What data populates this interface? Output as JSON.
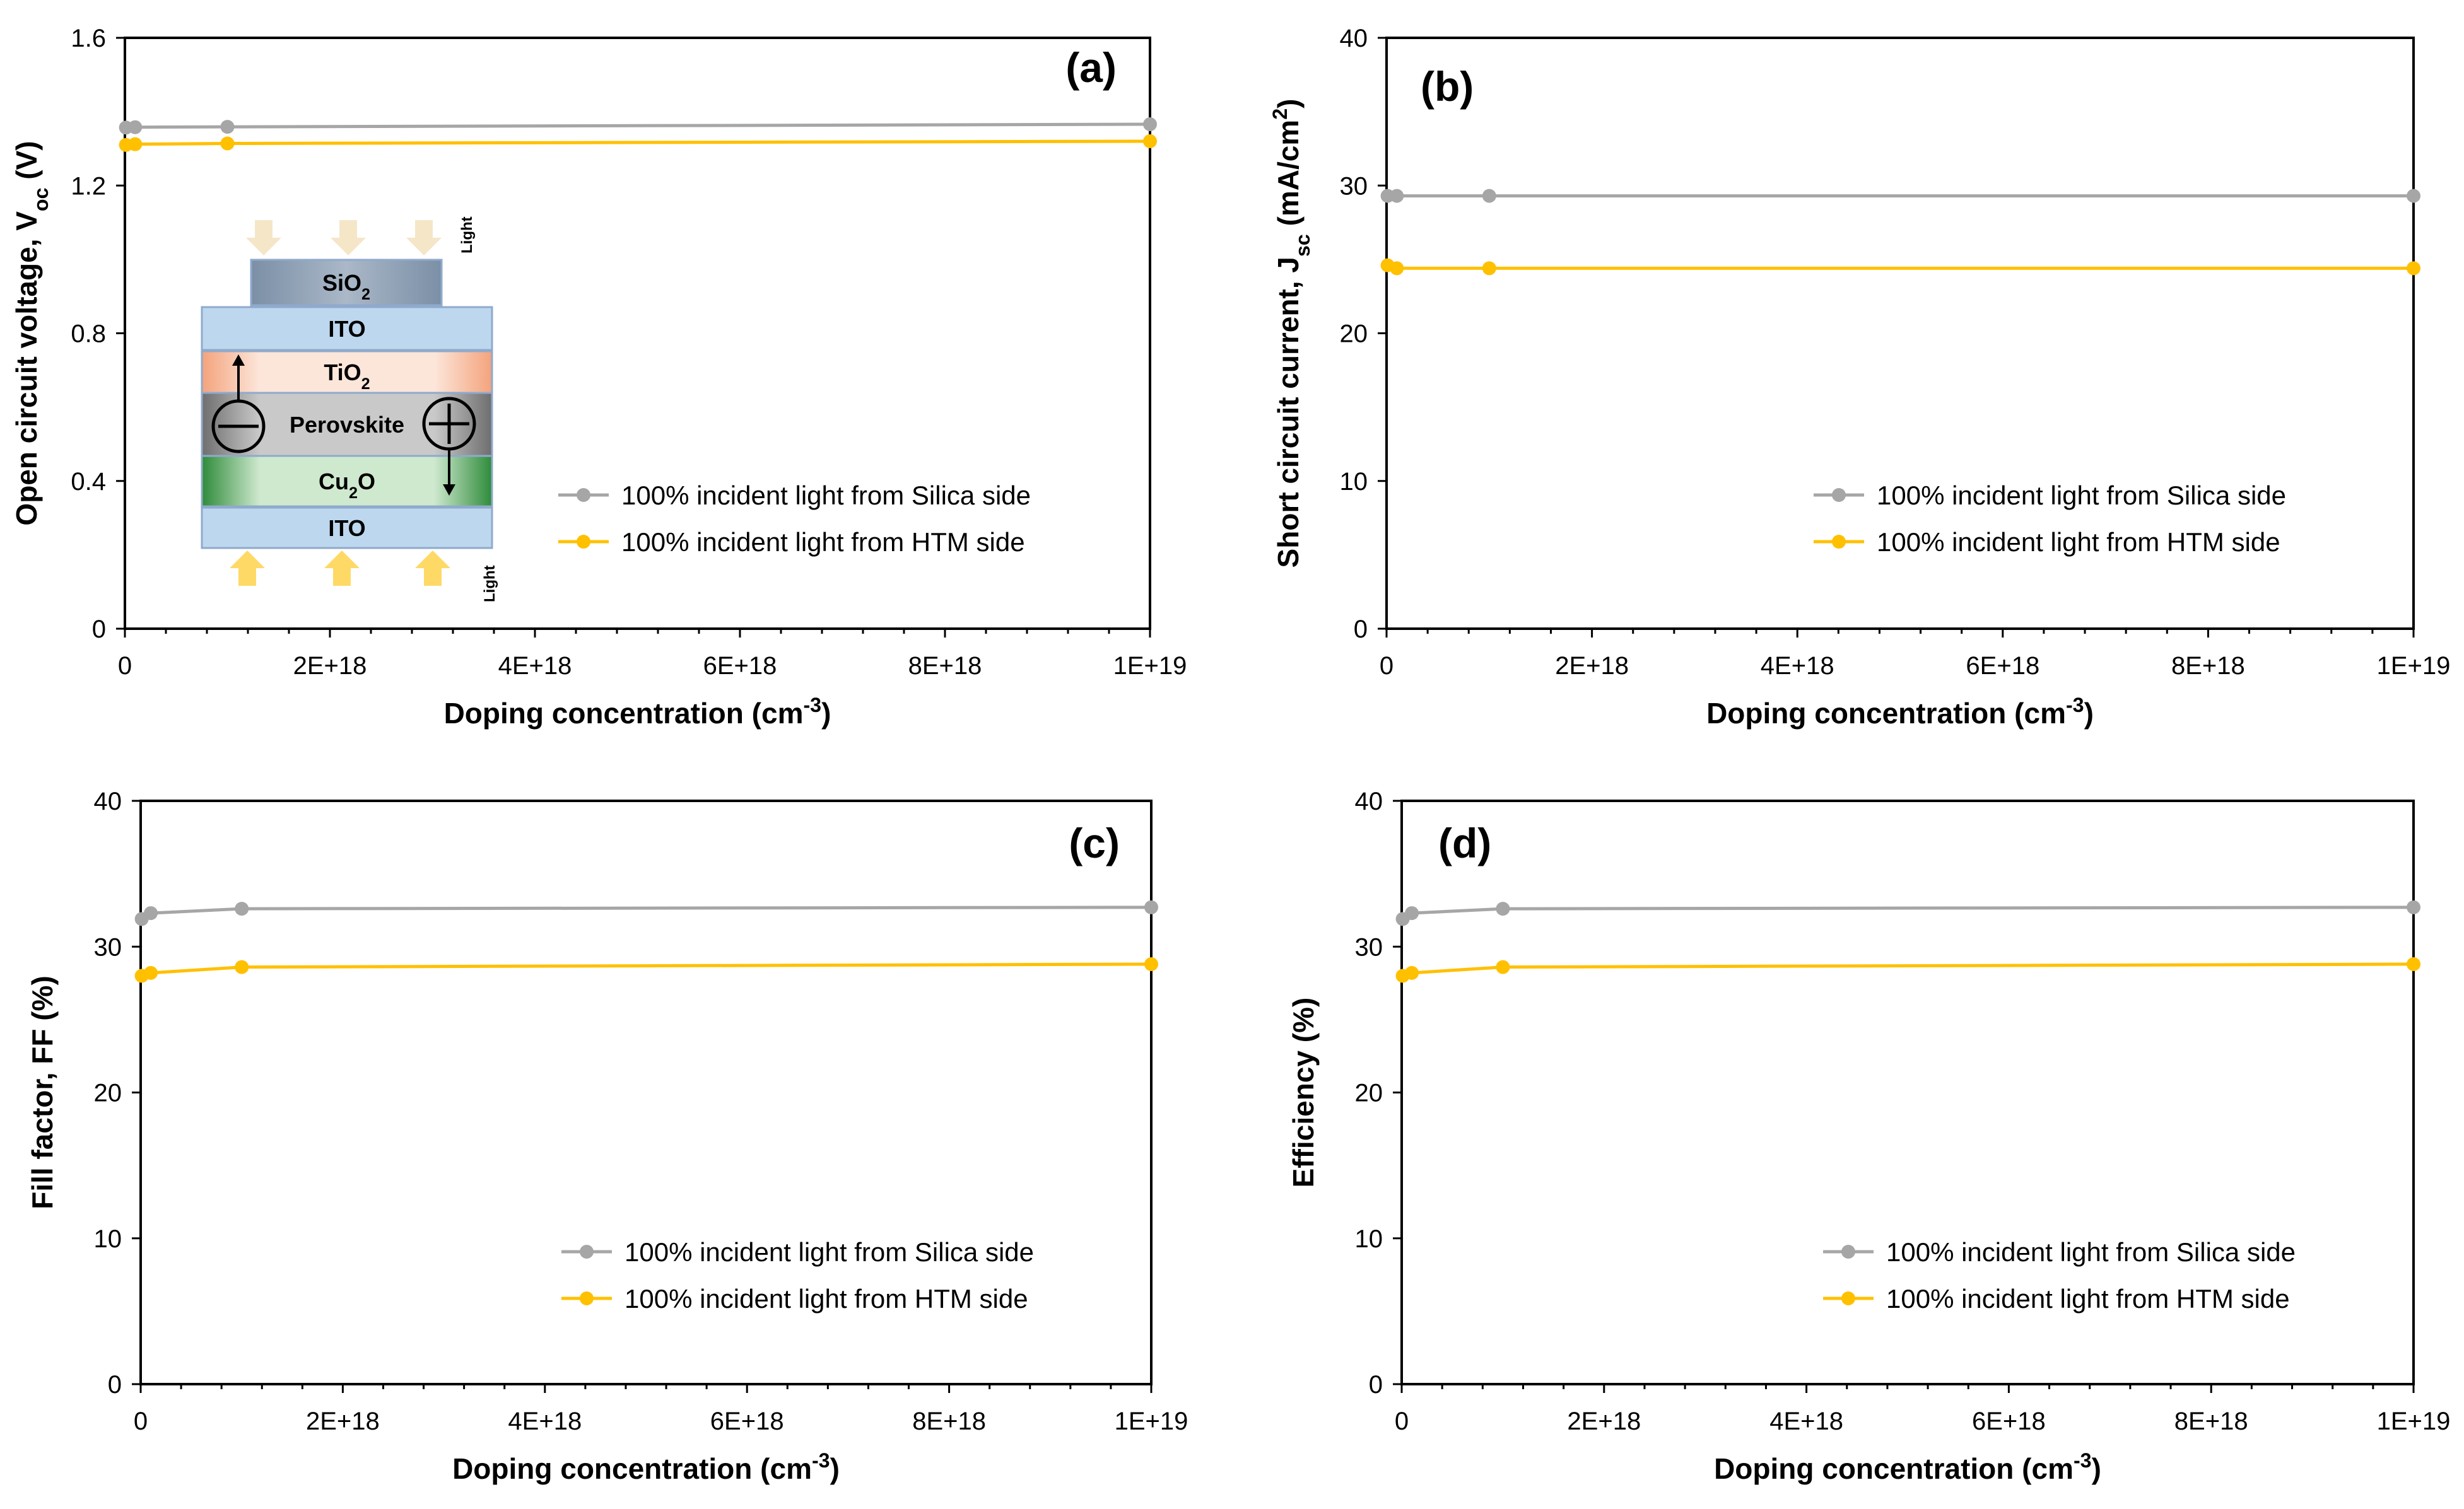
{
  "colors": {
    "silica": "#A6A6A6",
    "htm": "#FFC000"
  },
  "legend": {
    "silica": "100% incident light from Silica side",
    "htm": "100% incident light from HTM side"
  },
  "inset": {
    "light_label": "Light",
    "layers": [
      "SiO2",
      "ITO",
      "TiO2",
      "Perovskite",
      "Cu2O",
      "ITO"
    ]
  },
  "chart_data": [
    {
      "type": "line",
      "panel_label": "(a)",
      "xlabel": "Doping concentration (cm-3)",
      "ylabel": "Open circuit voltage, Voc (V)",
      "xlim": [
        0,
        1e+19
      ],
      "ylim": [
        0,
        1.6
      ],
      "xticks": [
        "0",
        "2E+18",
        "4E+18",
        "6E+18",
        "8E+18",
        "1E+19"
      ],
      "yticks": [
        "0",
        "0.4",
        "0.8",
        "1.2",
        "1.6"
      ],
      "x": [
        1e+16,
        1e+17,
        1e+18,
        1e+19
      ],
      "series": [
        {
          "name": "100% incident light from Silica side",
          "values": [
            1.357,
            1.358,
            1.359,
            1.366
          ]
        },
        {
          "name": "100% incident light from HTM side",
          "values": [
            1.31,
            1.312,
            1.314,
            1.32
          ]
        }
      ]
    },
    {
      "type": "line",
      "panel_label": "(b)",
      "xlabel": "Doping concentration (cm-3)",
      "ylabel": "Short circuit current, Jsc (mA/cm2)",
      "xlim": [
        0,
        1e+19
      ],
      "ylim": [
        0,
        40
      ],
      "xticks": [
        "0",
        "2E+18",
        "4E+18",
        "6E+18",
        "8E+18",
        "1E+19"
      ],
      "yticks": [
        "0",
        "10",
        "20",
        "30",
        "40"
      ],
      "x": [
        1e+16,
        1e+17,
        1e+18,
        1e+19
      ],
      "series": [
        {
          "name": "100% incident light from Silica side",
          "values": [
            29.3,
            29.3,
            29.3,
            29.3
          ]
        },
        {
          "name": "100% incident light from HTM side",
          "values": [
            24.6,
            24.4,
            24.4,
            24.4
          ]
        }
      ]
    },
    {
      "type": "line",
      "panel_label": "(c)",
      "xlabel": "Doping concentration (cm-3)",
      "ylabel": "Fill factor, FF (%)",
      "xlim": [
        0,
        1e+19
      ],
      "ylim": [
        0,
        40
      ],
      "xticks": [
        "0",
        "2E+18",
        "4E+18",
        "6E+18",
        "8E+18",
        "1E+19"
      ],
      "yticks": [
        "0",
        "10",
        "20",
        "30",
        "40"
      ],
      "x": [
        1e+16,
        1e+17,
        1e+18,
        1e+19
      ],
      "series": [
        {
          "name": "100% incident light from Silica side",
          "values": [
            31.9,
            32.3,
            32.6,
            32.7
          ]
        },
        {
          "name": "100% incident light from HTM side",
          "values": [
            28.0,
            28.2,
            28.6,
            28.8
          ]
        }
      ]
    },
    {
      "type": "line",
      "panel_label": "(d)",
      "xlabel": "Doping concentration (cm-3)",
      "ylabel": "Efficiency (%)",
      "xlim": [
        0,
        1e+19
      ],
      "ylim": [
        0,
        40
      ],
      "xticks": [
        "0",
        "2E+18",
        "4E+18",
        "6E+18",
        "8E+18",
        "1E+19"
      ],
      "yticks": [
        "0",
        "10",
        "20",
        "30",
        "40"
      ],
      "x": [
        1e+16,
        1e+17,
        1e+18,
        1e+19
      ],
      "series": [
        {
          "name": "100% incident light from Silica side",
          "values": [
            31.9,
            32.3,
            32.6,
            32.7
          ]
        },
        {
          "name": "100% incident light from HTM side",
          "values": [
            28.0,
            28.2,
            28.6,
            28.8
          ]
        }
      ]
    }
  ]
}
